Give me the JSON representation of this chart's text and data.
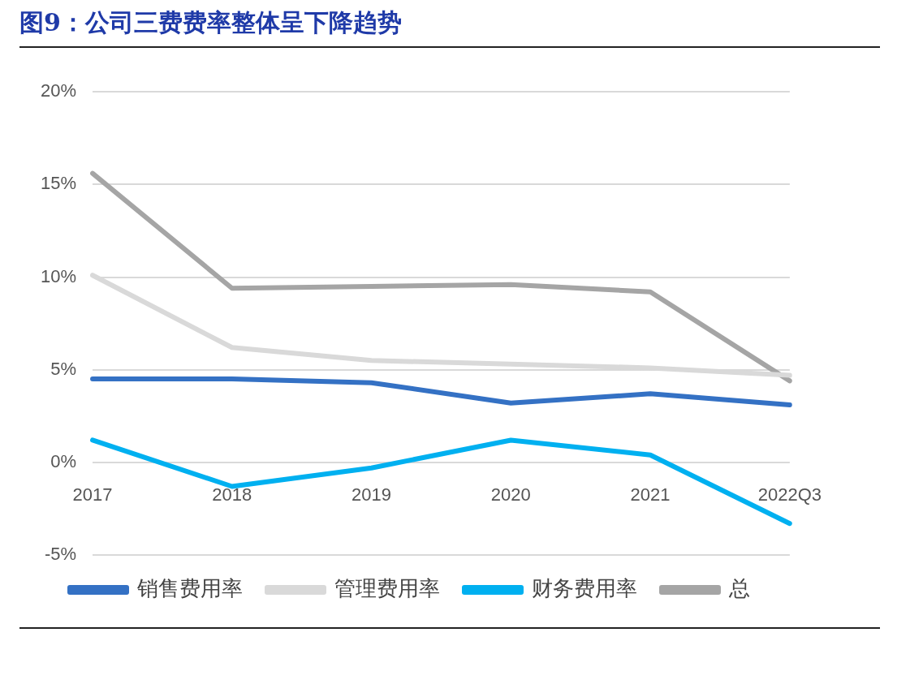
{
  "chart_data": {
    "type": "line",
    "title": "图9：公司三费费率整体呈下降趋势",
    "categories": [
      "2017",
      "2018",
      "2019",
      "2020",
      "2021",
      "2022Q3"
    ],
    "series": [
      {
        "name": "销售费用率",
        "color": "#3471c4",
        "values": [
          4.5,
          4.5,
          4.3,
          3.2,
          3.7,
          3.1
        ]
      },
      {
        "name": "管理费用率",
        "color": "#d9d9d9",
        "values": [
          10.1,
          6.2,
          5.5,
          5.3,
          5.1,
          4.7
        ]
      },
      {
        "name": "财务费用率",
        "color": "#00b0f0",
        "values": [
          1.2,
          -1.3,
          -0.3,
          1.2,
          0.4,
          -3.3
        ]
      },
      {
        "name": "总",
        "color": "#a5a5a5",
        "values": [
          15.6,
          9.4,
          9.5,
          9.6,
          9.2,
          4.4
        ]
      }
    ],
    "ylim": [
      -5,
      20
    ],
    "yticks": [
      {
        "value": -5,
        "label": "-5%"
      },
      {
        "value": 0,
        "label": "0%"
      },
      {
        "value": 5,
        "label": "5%"
      },
      {
        "value": 10,
        "label": "10%"
      },
      {
        "value": 15,
        "label": "15%"
      },
      {
        "value": 20,
        "label": "20%"
      }
    ],
    "grid": "y",
    "legend": "bottom",
    "marker": "none",
    "line_style": "solid"
  }
}
